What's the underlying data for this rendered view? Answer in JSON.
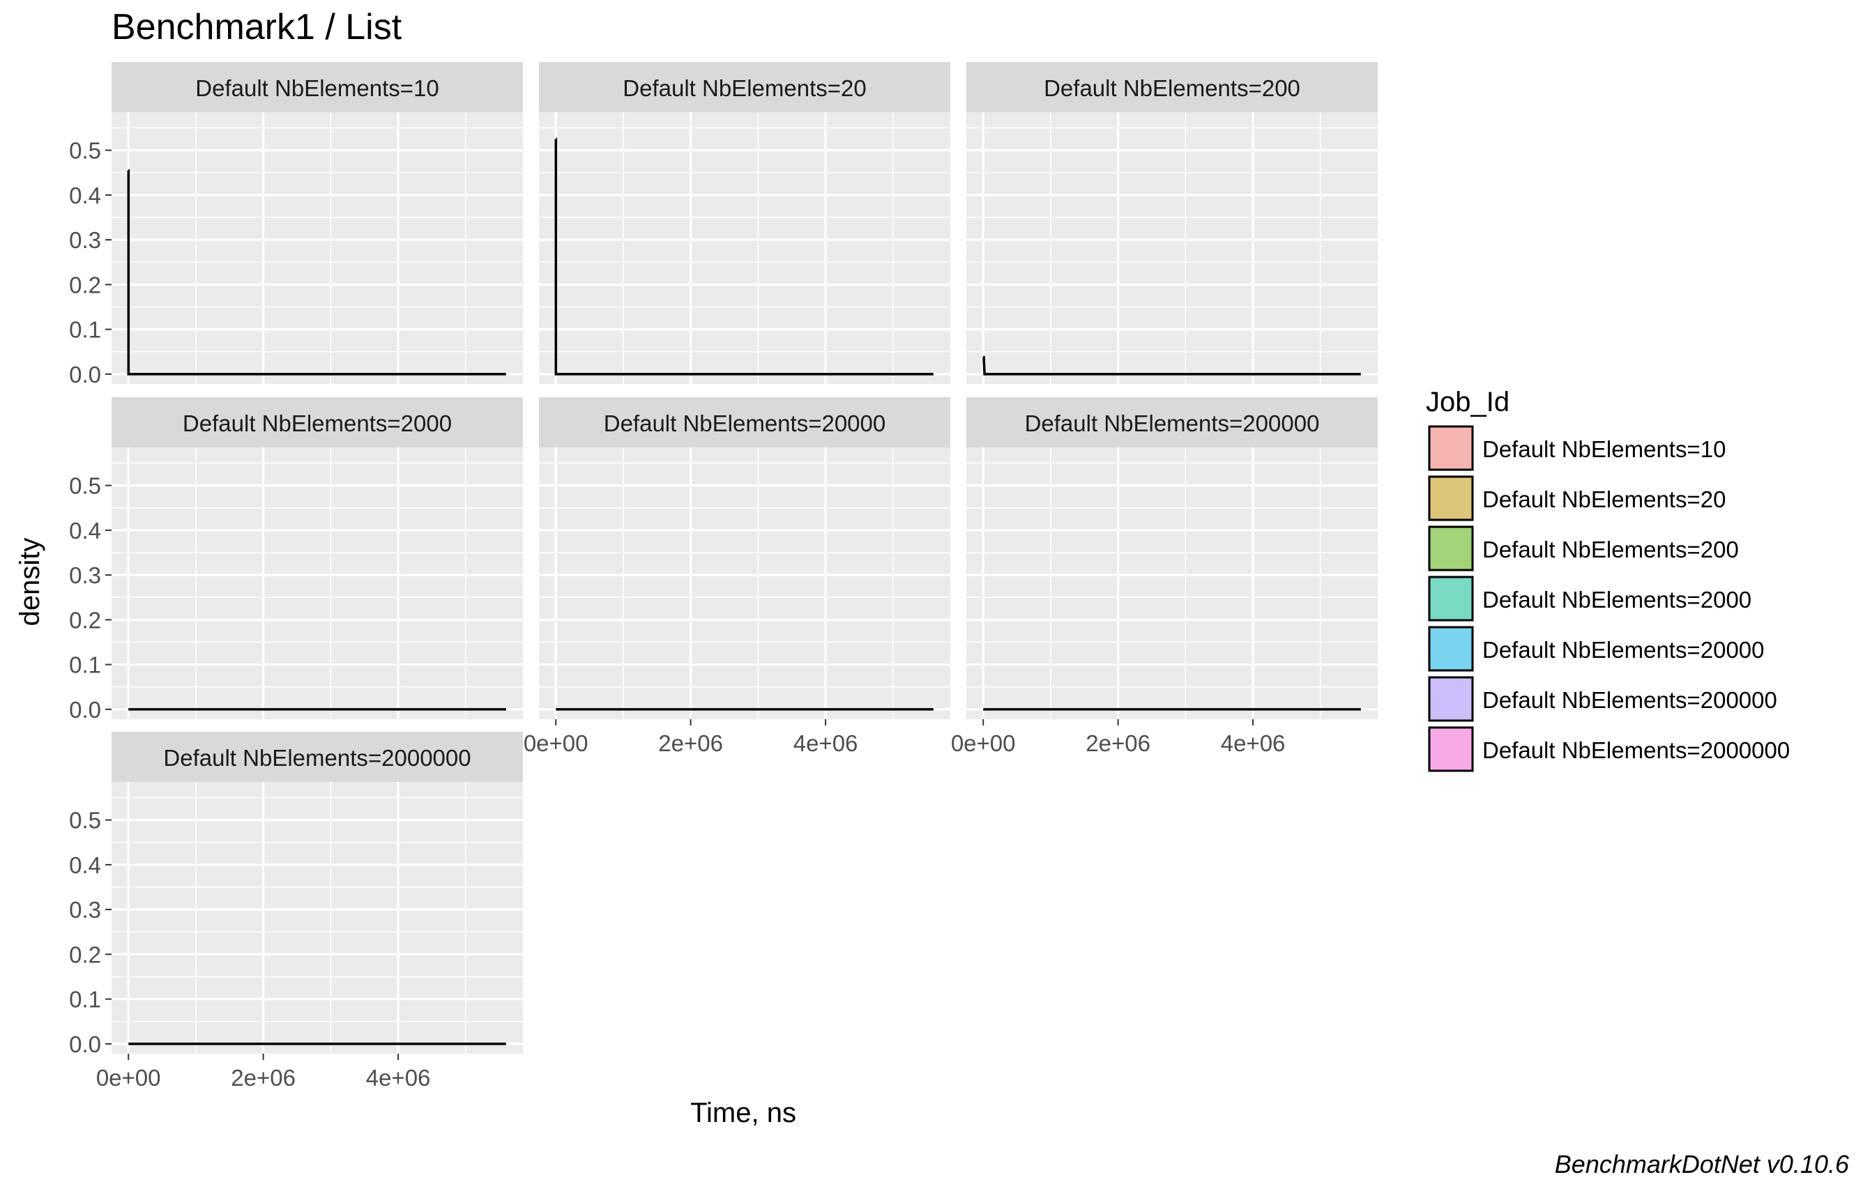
{
  "chart_data": {
    "type": "area",
    "title": "Benchmark1 / List",
    "xlabel": "Time, ns",
    "ylabel": "density",
    "caption": "BenchmarkDotNet v0.10.6",
    "xlim": [
      -250000,
      5850000
    ],
    "ylim": [
      -0.022,
      0.585
    ],
    "x_ticks": [
      0,
      2000000,
      4000000
    ],
    "x_tick_labels": [
      "0e+00",
      "2e+06",
      "4e+06"
    ],
    "x_minor_ticks": [
      1000000,
      3000000,
      5000000
    ],
    "y_ticks": [
      0.0,
      0.1,
      0.2,
      0.3,
      0.4,
      0.5
    ],
    "y_tick_labels": [
      "0.0",
      "0.1",
      "0.2",
      "0.3",
      "0.4",
      "0.5"
    ],
    "y_minor_ticks": [
      0.05,
      0.15,
      0.25,
      0.35,
      0.45,
      0.55
    ],
    "facet_cols": 3,
    "legend": {
      "title": "Job_Id",
      "placement": "right",
      "entries": [
        {
          "label": "Default NbElements=10",
          "color": "#F8766D"
        },
        {
          "label": "Default NbElements=20",
          "color": "#C49A00"
        },
        {
          "label": "Default NbElements=200",
          "color": "#53B400"
        },
        {
          "label": "Default NbElements=2000",
          "color": "#00C094"
        },
        {
          "label": "Default NbElements=20000",
          "color": "#00B6EB"
        },
        {
          "label": "Default NbElements=200000",
          "color": "#A58AFF"
        },
        {
          "label": "Default NbElements=2000000",
          "color": "#FB61D7"
        }
      ]
    },
    "panels": [
      {
        "label": "Default NbElements=10",
        "series": [
          {
            "x": [
              0,
              1000,
              1000,
              5600000
            ],
            "y": [
              0.455,
              0.455,
              0.0,
              0.0
            ]
          }
        ]
      },
      {
        "label": "Default NbElements=20",
        "series": [
          {
            "x": [
              0,
              1000,
              1000,
              5600000
            ],
            "y": [
              0.525,
              0.525,
              0.0,
              0.0
            ]
          }
        ]
      },
      {
        "label": "Default NbElements=200",
        "series": [
          {
            "x": [
              0,
              8000,
              20000,
              5600000
            ],
            "y": [
              0.038,
              0.038,
              0.0,
              0.0
            ]
          }
        ]
      },
      {
        "label": "Default NbElements=2000",
        "series": [
          {
            "x": [
              0,
              5600000
            ],
            "y": [
              0.0,
              0.0
            ]
          }
        ]
      },
      {
        "label": "Default NbElements=20000",
        "series": [
          {
            "x": [
              0,
              5600000
            ],
            "y": [
              0.0,
              0.0
            ]
          }
        ]
      },
      {
        "label": "Default NbElements=200000",
        "series": [
          {
            "x": [
              0,
              5600000
            ],
            "y": [
              0.0,
              0.0
            ]
          }
        ]
      },
      {
        "label": "Default NbElements=2000000",
        "series": [
          {
            "x": [
              0,
              5600000
            ],
            "y": [
              0.0,
              0.0
            ]
          }
        ]
      }
    ]
  }
}
